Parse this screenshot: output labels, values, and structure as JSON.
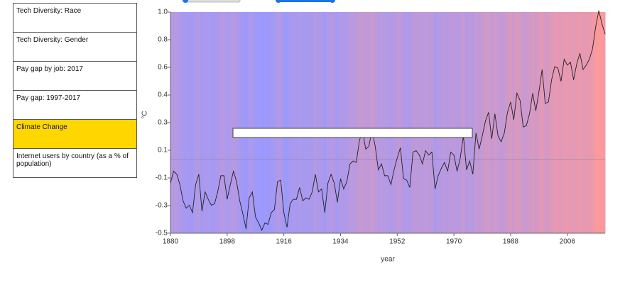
{
  "menu": {
    "items": [
      "Tech Diversity: Race",
      "Tech Diversity: Gender",
      "Pay gap by job: 2017",
      "Pay gap: 1997-2017",
      "Climate Change",
      "Internet users by country (as a % of population)"
    ],
    "active": 4
  },
  "chart_data": {
    "type": "line",
    "x_label": "year",
    "y_label": "°C",
    "x": [
      1880,
      1881,
      1882,
      1883,
      1884,
      1885,
      1886,
      1887,
      1888,
      1889,
      1890,
      1891,
      1892,
      1893,
      1894,
      1895,
      1896,
      1897,
      1898,
      1899,
      1900,
      1901,
      1902,
      1903,
      1904,
      1905,
      1906,
      1907,
      1908,
      1909,
      1910,
      1911,
      1912,
      1913,
      1914,
      1915,
      1916,
      1917,
      1918,
      1919,
      1920,
      1921,
      1922,
      1923,
      1924,
      1925,
      1926,
      1927,
      1928,
      1929,
      1930,
      1931,
      1932,
      1933,
      1934,
      1935,
      1936,
      1937,
      1938,
      1939,
      1940,
      1941,
      1942,
      1943,
      1944,
      1945,
      1946,
      1947,
      1948,
      1949,
      1950,
      1951,
      1952,
      1953,
      1954,
      1955,
      1956,
      1957,
      1958,
      1959,
      1960,
      1961,
      1962,
      1963,
      1964,
      1965,
      1966,
      1967,
      1968,
      1969,
      1970,
      1971,
      1972,
      1973,
      1974,
      1975,
      1976,
      1977,
      1978,
      1979,
      1980,
      1981,
      1982,
      1983,
      1984,
      1985,
      1986,
      1987,
      1988,
      1989,
      1990,
      1991,
      1992,
      1993,
      1994,
      1995,
      1996,
      1997,
      1998,
      1999,
      2000,
      2001,
      2002,
      2003,
      2004,
      2005,
      2006,
      2007,
      2008,
      2009,
      2010,
      2011,
      2012,
      2013,
      2014,
      2015,
      2016,
      2017,
      2018
    ],
    "series": [
      {
        "color": "#222222",
        "values": [
          -0.16,
          -0.08,
          -0.1,
          -0.17,
          -0.28,
          -0.33,
          -0.31,
          -0.36,
          -0.17,
          -0.1,
          -0.35,
          -0.22,
          -0.27,
          -0.31,
          -0.3,
          -0.22,
          -0.11,
          -0.11,
          -0.27,
          -0.17,
          -0.08,
          -0.15,
          -0.28,
          -0.37,
          -0.47,
          -0.26,
          -0.22,
          -0.39,
          -0.43,
          -0.48,
          -0.43,
          -0.44,
          -0.36,
          -0.34,
          -0.15,
          -0.14,
          -0.36,
          -0.46,
          -0.3,
          -0.27,
          -0.27,
          -0.19,
          -0.28,
          -0.26,
          -0.27,
          -0.22,
          -0.1,
          -0.22,
          -0.2,
          -0.36,
          -0.16,
          -0.1,
          -0.16,
          -0.29,
          -0.13,
          -0.2,
          -0.15,
          -0.03,
          -0.01,
          -0.02,
          0.13,
          0.19,
          0.07,
          0.09,
          0.2,
          0.09,
          -0.07,
          -0.03,
          -0.11,
          -0.11,
          -0.17,
          -0.07,
          0.01,
          0.08,
          -0.13,
          -0.14,
          -0.19,
          0.05,
          0.06,
          0.03,
          -0.03,
          0.06,
          0.03,
          0.05,
          -0.2,
          -0.11,
          -0.06,
          -0.02,
          -0.08,
          0.05,
          0.03,
          -0.08,
          0.01,
          0.16,
          -0.07,
          -0.01,
          -0.1,
          0.18,
          0.07,
          0.16,
          0.26,
          0.32,
          0.14,
          0.31,
          0.16,
          0.12,
          0.18,
          0.32,
          0.39,
          0.27,
          0.45,
          0.4,
          0.22,
          0.23,
          0.31,
          0.45,
          0.33,
          0.46,
          0.61,
          0.38,
          0.39,
          0.54,
          0.63,
          0.62,
          0.53,
          0.68,
          0.64,
          0.66,
          0.54,
          0.65,
          0.72,
          0.61,
          0.64,
          0.68,
          0.75,
          0.9,
          1.01,
          0.92,
          0.85
        ]
      }
    ],
    "reference_line": 0,
    "xlim": [
      1880,
      2018
    ],
    "xticks": [
      1880,
      1898,
      1916,
      1934,
      1952,
      1970,
      1988,
      2006
    ],
    "ylim": [
      -0.5,
      1.0
    ],
    "yticks": [
      -0.5,
      {
        "value": -0.3125,
        "label": "-0.3"
      },
      {
        "value": -0.125,
        "label": "-0.1"
      },
      {
        "value": 0.0625,
        "label": "0.1"
      },
      {
        "value": 0.25,
        "label": "0.3"
      },
      {
        "value": 0.4375,
        "label": "0.4"
      },
      {
        "value": 0.625,
        "label": "0.6"
      },
      {
        "value": 0.8125,
        "label": "0.8"
      },
      {
        "value": 1.0,
        "label": "1.0"
      }
    ],
    "stripe_colors": [
      "#9999ff",
      "#ff9999"
    ]
  }
}
